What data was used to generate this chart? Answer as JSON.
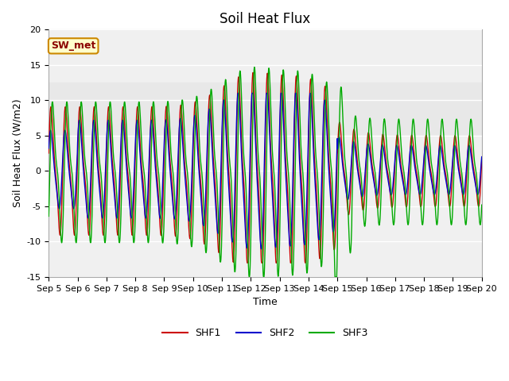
{
  "title": "Soil Heat Flux",
  "xlabel": "Time",
  "ylabel": "Soil Heat Flux (W/m2)",
  "ylim": [
    -15,
    20
  ],
  "xlim": [
    0,
    15
  ],
  "x_tick_labels": [
    "Sep 5",
    "Sep 6",
    "Sep 7",
    "Sep 8",
    "Sep 9",
    "Sep 10",
    "Sep 11",
    "Sep 12",
    "Sep 13",
    "Sep 14",
    "Sep 15",
    "Sep 16",
    "Sep 17",
    "Sep 18",
    "Sep 19",
    "Sep 20"
  ],
  "shaded_band_lower": 5,
  "shaded_band_upper": 12.5,
  "shaded_color": "#e8e8e8",
  "bg_color": "#f0f0f0",
  "line_colors": {
    "SHF1": "#cc0000",
    "SHF2": "#0000cc",
    "SHF3": "#00aa00"
  },
  "legend_label": "SW_met",
  "legend_bg": "#ffffcc",
  "legend_border": "#cc8800",
  "title_fontsize": 12,
  "label_fontsize": 9,
  "tick_fontsize": 8,
  "legend_fontsize": 9
}
